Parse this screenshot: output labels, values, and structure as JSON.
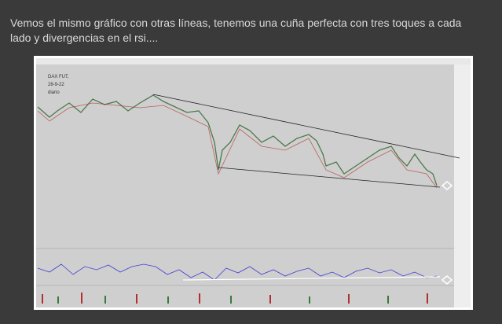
{
  "post": {
    "text": "Vemos el mismo gráfico con otras líneas, tenemos una cuña perfecta con tres toques a cada lado y divergencias en el rsi....",
    "chart_label": {
      "instrument": "DAX FUT,",
      "date": "28-9-22",
      "period": "diario"
    }
  }
}
